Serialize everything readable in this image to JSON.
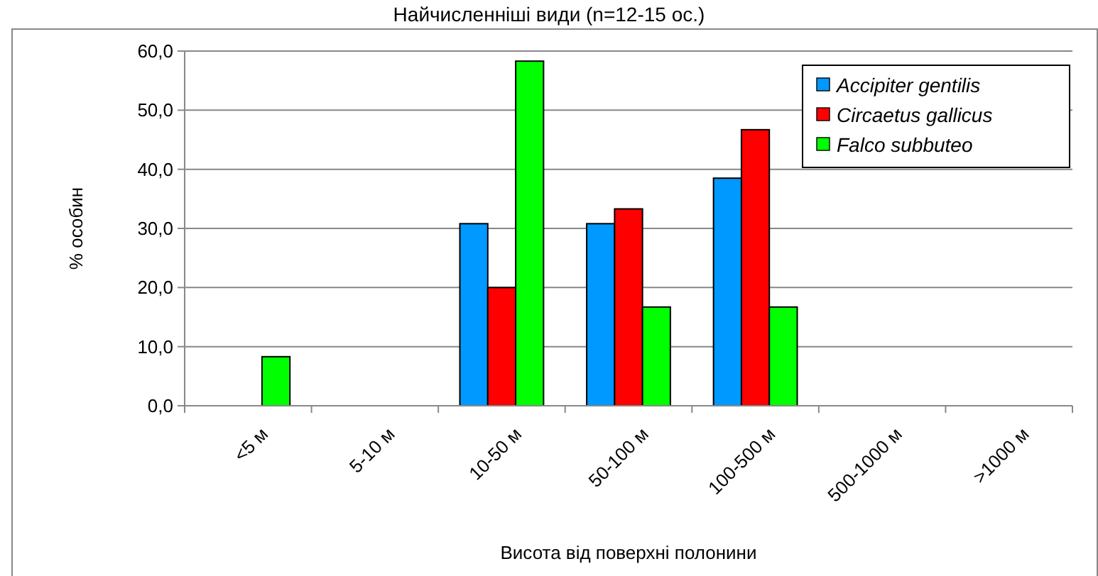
{
  "chart_data": {
    "type": "bar",
    "title": "Найчисленніші види (n=12-15 ос.)",
    "xlabel": "Висота від поверхні полонини",
    "ylabel": "% особин",
    "categories": [
      "<5 м",
      "5-10 м",
      "10-50 м",
      "50-100 м",
      "100-500 м",
      "500-1000 м",
      ">1000 м"
    ],
    "series": [
      {
        "name": "Accipiter gentilis",
        "color": "#0099ff",
        "values": [
          0,
          0,
          30.8,
          30.8,
          38.5,
          0,
          0
        ]
      },
      {
        "name": "Circaetus gallicus",
        "color": "#ff0000",
        "values": [
          0,
          0,
          20.0,
          33.3,
          46.7,
          0,
          0
        ]
      },
      {
        "name": "Falco subbuteo",
        "color": "#00ff00",
        "values": [
          8.3,
          0,
          58.3,
          16.7,
          16.7,
          0,
          0
        ]
      }
    ],
    "ylim": [
      0,
      60
    ],
    "yticks": [
      {
        "value": 0,
        "label": "0,0"
      },
      {
        "value": 10,
        "label": "10,0"
      },
      {
        "value": 20,
        "label": "20,0"
      },
      {
        "value": 30,
        "label": "30,0"
      },
      {
        "value": 40,
        "label": "40,0"
      },
      {
        "value": 50,
        "label": "50,0"
      },
      {
        "value": 60,
        "label": "60,0"
      }
    ],
    "grid": "y",
    "legend": "top right"
  }
}
